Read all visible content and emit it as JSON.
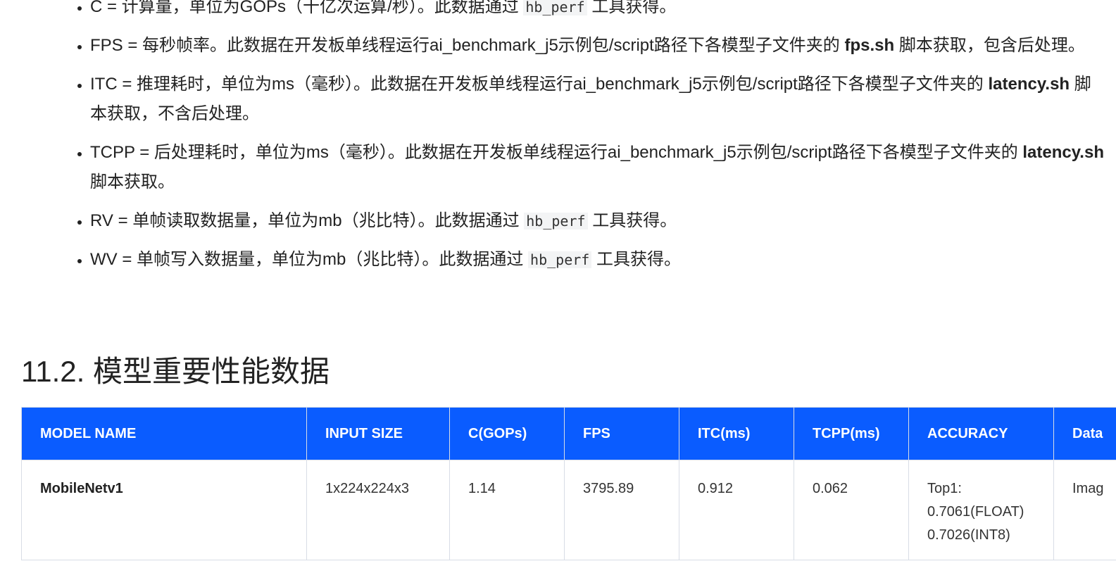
{
  "list": [
    [
      {
        "text": "C = 计算量，单位为GOPs（十亿次运算/秒）。此数据通过 "
      },
      {
        "code": "hb_perf"
      },
      {
        "text": " 工具获得。"
      }
    ],
    [
      {
        "text": "FPS = 每秒帧率。此数据在开发板单线程运行ai_benchmark_j5示例包/script路径下各模型子文件夹的 "
      },
      {
        "bold": "fps.sh"
      },
      {
        "text": " 脚本获取，包含后处理。"
      }
    ],
    [
      {
        "text": "ITC = 推理耗时，单位为ms（毫秒）。此数据在开发板单线程运行ai_benchmark_j5示例包/script路径下各模型子文件夹的 "
      },
      {
        "bold": "latency.sh"
      },
      {
        "text": " 脚本获取，不含后处理。"
      }
    ],
    [
      {
        "text": "TCPP = 后处理耗时，单位为ms（毫秒）。此数据在开发板单线程运行ai_benchmark_j5示例包/script路径下各模型子文件夹的 "
      },
      {
        "bold": "latency.sh"
      },
      {
        "text": " 脚本获取。"
      }
    ],
    [
      {
        "text": "RV = 单帧读取数据量，单位为mb（兆比特）。此数据通过 "
      },
      {
        "code": "hb_perf"
      },
      {
        "text": " 工具获得。"
      }
    ],
    [
      {
        "text": "WV = 单帧写入数据量，单位为mb（兆比特）。此数据通过 "
      },
      {
        "code": "hb_perf"
      },
      {
        "text": " 工具获得。"
      }
    ]
  ],
  "heading": {
    "number": "11.2.",
    "title": "模型重要性能数据"
  },
  "table": {
    "header": [
      "MODEL NAME",
      "INPUT SIZE",
      "C(GOPs)",
      "FPS",
      "ITC(ms)",
      "TCPP(ms)",
      "ACCURACY",
      "Data"
    ],
    "rows": [
      [
        "MobileNetv1",
        "1x224x224x3",
        "1.14",
        "3795.89",
        "0.912",
        "0.062",
        [
          "Top1:",
          "0.7061(FLOAT)",
          "0.7026(INT8)"
        ],
        "Imag"
      ]
    ]
  }
}
